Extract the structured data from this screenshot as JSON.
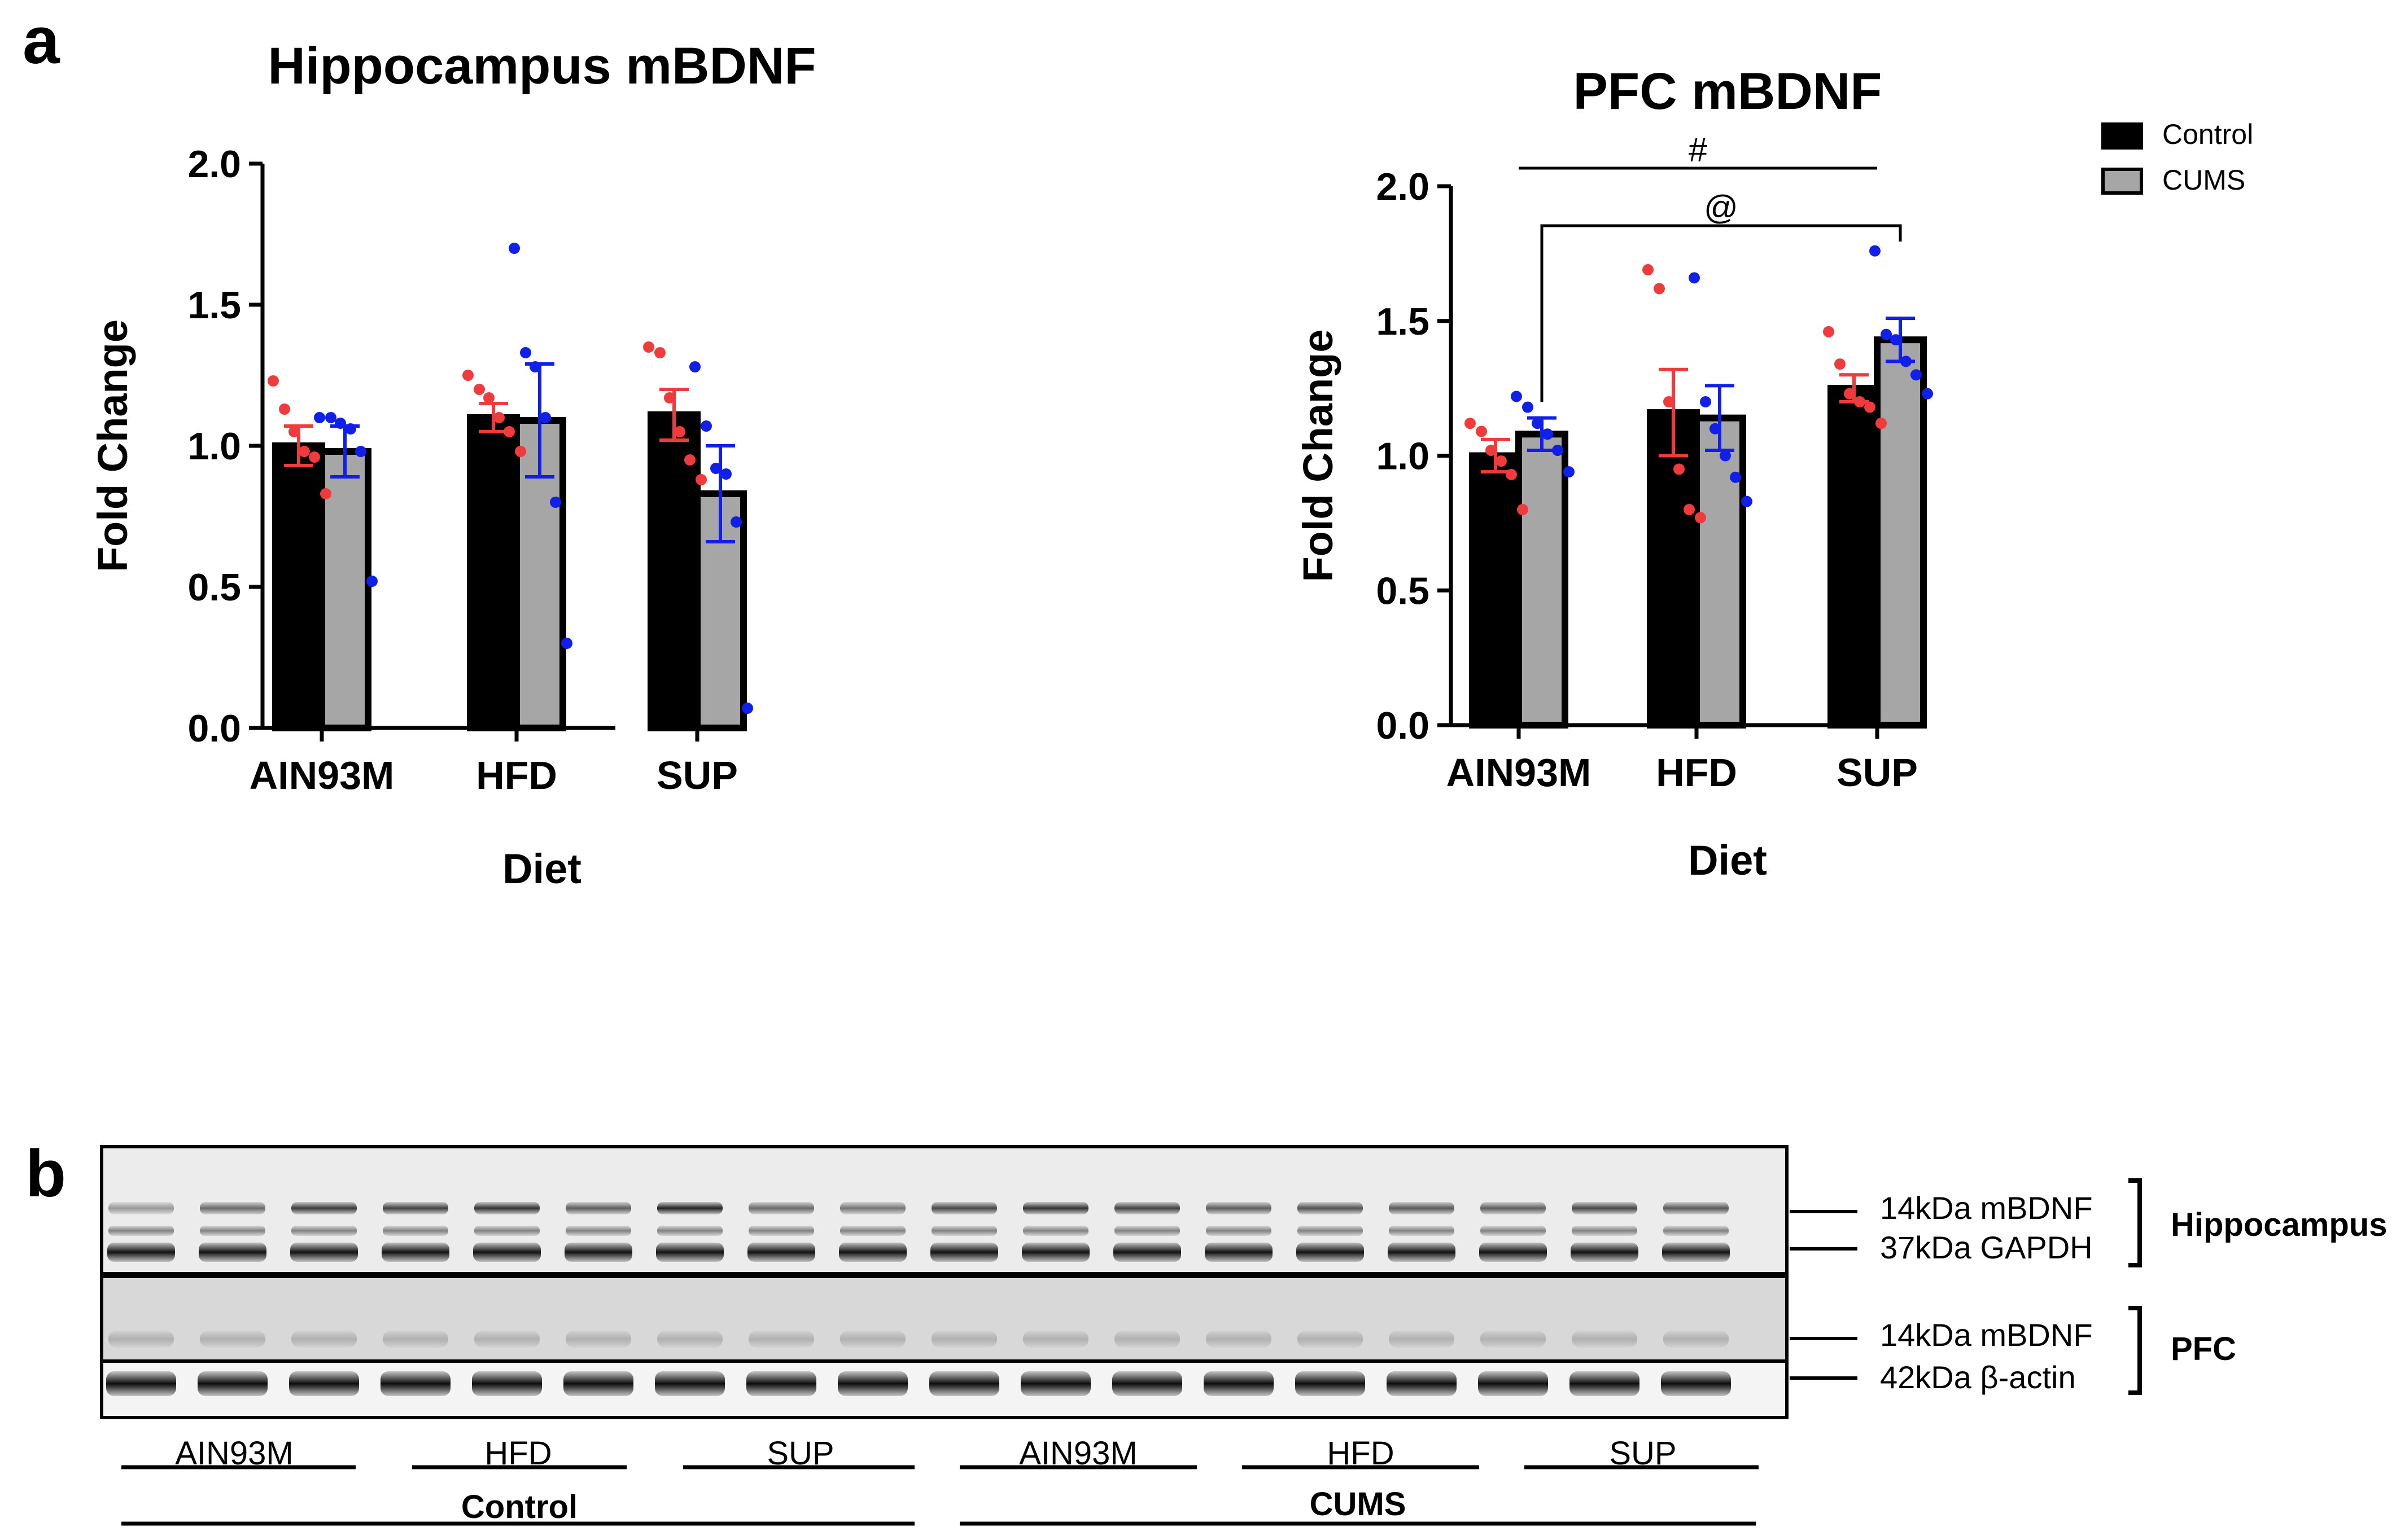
{
  "panel_labels": {
    "a": "a",
    "b": "b"
  },
  "legend": [
    {
      "label": "Control",
      "color": "#000000"
    },
    {
      "label": "CUMS",
      "color": "#a6a6a6"
    }
  ],
  "colors": {
    "control_points": "#ef3b3b",
    "cums_points": "#1020e8",
    "control_bar": "#000000",
    "cums_bar": "#a6a6a6"
  },
  "chart_data": [
    {
      "type": "bar",
      "title": "Hippocampus mBDNF",
      "xlabel": "Diet",
      "ylabel": "Fold Change",
      "categories": [
        "AIN93M",
        "HFD",
        "SUP"
      ],
      "ylim": [
        0,
        2.0
      ],
      "yticks": [
        "0.0",
        "0.5",
        "1.0",
        "1.5",
        "2.0"
      ],
      "series": [
        {
          "name": "Control",
          "values": [
            1.0,
            1.1,
            1.11
          ],
          "sem": [
            0.07,
            0.05,
            0.09
          ],
          "points": [
            [
              1.23,
              1.13,
              1.05,
              0.98,
              0.96,
              0.83
            ],
            [
              1.25,
              1.2,
              1.17,
              1.1,
              1.05,
              0.98
            ],
            [
              1.35,
              1.33,
              1.17,
              1.05,
              0.95,
              0.88
            ]
          ]
        },
        {
          "name": "CUMS",
          "values": [
            0.98,
            1.09,
            0.83
          ],
          "sem": [
            0.09,
            0.2,
            0.17
          ],
          "points": [
            [
              1.1,
              1.1,
              1.08,
              1.06,
              0.98,
              0.52
            ],
            [
              1.7,
              1.33,
              1.28,
              1.1,
              0.8,
              0.3
            ],
            [
              1.28,
              1.07,
              0.92,
              0.9,
              0.73,
              0.07
            ]
          ]
        }
      ],
      "annotations": []
    },
    {
      "type": "bar",
      "title": "PFC mBDNF",
      "xlabel": "Diet",
      "ylabel": "Fold Change",
      "categories": [
        "AIN93M",
        "HFD",
        "SUP"
      ],
      "ylim": [
        0,
        2.0
      ],
      "yticks": [
        "0.0",
        "0.5",
        "1.0",
        "1.5",
        "2.0"
      ],
      "series": [
        {
          "name": "Control",
          "values": [
            1.0,
            1.16,
            1.25
          ],
          "sem": [
            0.06,
            0.16,
            0.05
          ],
          "points": [
            [
              1.12,
              1.09,
              1.02,
              0.98,
              0.93,
              0.8
            ],
            [
              1.69,
              1.62,
              1.2,
              0.95,
              0.8,
              0.77
            ],
            [
              1.46,
              1.34,
              1.23,
              1.2,
              1.18,
              1.12
            ]
          ]
        },
        {
          "name": "CUMS",
          "values": [
            1.08,
            1.14,
            1.43
          ],
          "sem": [
            0.06,
            0.12,
            0.08
          ],
          "points": [
            [
              1.22,
              1.18,
              1.12,
              1.08,
              1.02,
              0.94
            ],
            [
              1.66,
              1.2,
              1.1,
              1.0,
              0.92,
              0.83
            ],
            [
              1.76,
              1.45,
              1.43,
              1.35,
              1.3,
              1.23
            ]
          ]
        }
      ],
      "annotations": [
        {
          "symbol": "#",
          "from": [
            "AIN93M",
            "center"
          ],
          "to": [
            "SUP",
            "center"
          ]
        },
        {
          "symbol": "@",
          "from": [
            "AIN93M",
            "CUMS"
          ],
          "to": [
            "SUP",
            "CUMS"
          ]
        }
      ]
    }
  ],
  "blot": {
    "bands": [
      {
        "label": "14kDa mBDNF"
      },
      {
        "label": "37kDa GAPDH"
      },
      {
        "label": "14kDa mBDNF"
      },
      {
        "label": "42kDa β-actin"
      }
    ],
    "regions": [
      "Hippocampus",
      "PFC"
    ],
    "group_labels": [
      "AIN93M",
      "HFD",
      "SUP",
      "AIN93M",
      "HFD",
      "SUP"
    ],
    "condition_labels": [
      "Control",
      "CUMS"
    ]
  }
}
